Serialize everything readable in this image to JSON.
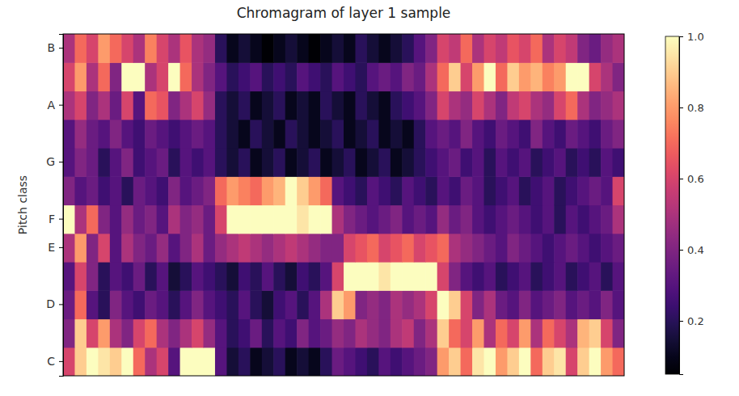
{
  "chart_data": {
    "type": "heatmap",
    "title": "Chromagram of layer 1 sample",
    "y_label": "Pitch class",
    "y_categories": [
      "C",
      null,
      "D",
      null,
      "E",
      "F",
      null,
      "G",
      null,
      "A",
      null,
      "B"
    ],
    "color": "magma",
    "tick_labels": "y",
    "colorbar": {
      "range": [
        0.05,
        1
      ],
      "ticks": [
        0.2,
        0.4,
        0.6,
        0.8,
        {
          "value": 1,
          "label": "1.0"
        }
      ]
    },
    "cells": [
      [
        0.6,
        0.9,
        1,
        0.95,
        0.9,
        1,
        0.7,
        0.5,
        0.6,
        0.3,
        1,
        1,
        1,
        0.3,
        0.15,
        0.2,
        0.1,
        0.15,
        0.2,
        0.1,
        0.15,
        0.1,
        0.2,
        0.35,
        0.3,
        0.25,
        0.2,
        0.3,
        0.25,
        0.3,
        0.35,
        0.4,
        0.8,
        0.9,
        0.7,
        0.95,
        1,
        0.8,
        0.9,
        1,
        0.7,
        0.9,
        0.95,
        0.6,
        0.9,
        1,
        0.8,
        0.7
      ],
      [
        0.4,
        0.9,
        0.6,
        0.8,
        0.5,
        0.4,
        0.6,
        0.7,
        0.5,
        0.4,
        0.5,
        0.6,
        0.45,
        0.3,
        0.2,
        0.25,
        0.35,
        0.2,
        0.3,
        0.25,
        0.4,
        0.3,
        0.35,
        0.45,
        0.4,
        0.5,
        0.45,
        0.4,
        0.5,
        0.55,
        0.4,
        0.5,
        0.9,
        0.7,
        0.6,
        0.8,
        0.5,
        0.7,
        0.6,
        0.8,
        0.5,
        0.7,
        0.6,
        0.5,
        0.85,
        0.9,
        0.6,
        0.4
      ],
      [
        0.35,
        0.7,
        0.3,
        0.2,
        0.4,
        0.3,
        0.25,
        0.35,
        0.3,
        0.2,
        0.3,
        0.4,
        0.3,
        0.25,
        0.2,
        0.3,
        0.2,
        0.15,
        0.25,
        0.3,
        0.2,
        0.3,
        0.5,
        0.9,
        0.8,
        0.4,
        0.45,
        0.4,
        0.5,
        0.45,
        0.5,
        0.6,
        1,
        0.9,
        0.6,
        0.4,
        0.5,
        0.35,
        0.3,
        0.4,
        0.3,
        0.35,
        0.4,
        0.3,
        0.35,
        0.3,
        0.4,
        0.3
      ],
      [
        0.3,
        0.6,
        0.4,
        0.2,
        0.3,
        0.25,
        0.35,
        0.2,
        0.3,
        0.15,
        0.2,
        0.3,
        0.25,
        0.2,
        0.15,
        0.25,
        0.2,
        0.3,
        0.2,
        0.15,
        0.25,
        0.2,
        0.3,
        0.6,
        1,
        1,
        1,
        0.95,
        1,
        1,
        1,
        1,
        0.6,
        0.4,
        0.3,
        0.25,
        0.3,
        0.2,
        0.25,
        0.3,
        0.2,
        0.25,
        0.3,
        0.2,
        0.25,
        0.3,
        0.2,
        0.3
      ],
      [
        0.5,
        0.8,
        0.4,
        0.6,
        0.3,
        0.5,
        0.4,
        0.35,
        0.45,
        0.3,
        0.4,
        0.5,
        0.35,
        0.45,
        0.5,
        0.55,
        0.5,
        0.45,
        0.5,
        0.55,
        0.5,
        0.45,
        0.4,
        0.4,
        0.6,
        0.65,
        0.7,
        0.6,
        0.65,
        0.7,
        0.6,
        0.65,
        0.7,
        0.5,
        0.45,
        0.4,
        0.35,
        0.3,
        0.4,
        0.35,
        0.3,
        0.25,
        0.3,
        0.35,
        0.3,
        0.25,
        0.3,
        0.35
      ],
      [
        1,
        0.5,
        0.7,
        0.4,
        0.3,
        0.45,
        0.35,
        0.4,
        0.3,
        0.5,
        0.4,
        0.45,
        0.35,
        0.6,
        1,
        1,
        1,
        1,
        1,
        1,
        0.95,
        1,
        1,
        0.5,
        0.4,
        0.35,
        0.3,
        0.35,
        0.4,
        0.3,
        0.35,
        0.3,
        0.45,
        0.35,
        0.4,
        0.3,
        0.25,
        0.3,
        0.35,
        0.3,
        0.25,
        0.3,
        0.2,
        0.3,
        0.25,
        0.3,
        0.35,
        0.5
      ],
      [
        0.4,
        0.3,
        0.35,
        0.25,
        0.3,
        0.2,
        0.35,
        0.3,
        0.25,
        0.4,
        0.3,
        0.35,
        0.4,
        0.7,
        0.8,
        0.75,
        0.7,
        0.8,
        0.85,
        1,
        0.9,
        0.8,
        0.7,
        0.3,
        0.25,
        0.2,
        0.3,
        0.25,
        0.2,
        0.3,
        0.25,
        0.2,
        0.3,
        0.25,
        0.35,
        0.3,
        0.2,
        0.25,
        0.3,
        0.2,
        0.25,
        0.3,
        0.2,
        0.25,
        0.3,
        0.35,
        0.3,
        0.6
      ],
      [
        0.3,
        0.4,
        0.35,
        0.2,
        0.3,
        0.4,
        0.25,
        0.3,
        0.35,
        0.2,
        0.3,
        0.25,
        0.3,
        0.2,
        0.15,
        0.2,
        0.1,
        0.15,
        0.2,
        0.1,
        0.15,
        0.2,
        0.1,
        0.15,
        0.2,
        0.1,
        0.15,
        0.2,
        0.1,
        0.15,
        0.2,
        0.25,
        0.3,
        0.35,
        0.25,
        0.3,
        0.2,
        0.3,
        0.25,
        0.3,
        0.2,
        0.25,
        0.3,
        0.2,
        0.25,
        0.2,
        0.3,
        0.25
      ],
      [
        0.3,
        0.45,
        0.35,
        0.3,
        0.4,
        0.3,
        0.25,
        0.35,
        0.3,
        0.25,
        0.3,
        0.35,
        0.3,
        0.2,
        0.15,
        0.1,
        0.2,
        0.15,
        0.1,
        0.2,
        0.15,
        0.1,
        0.15,
        0.2,
        0.1,
        0.15,
        0.2,
        0.1,
        0.15,
        0.1,
        0.2,
        0.3,
        0.35,
        0.3,
        0.4,
        0.3,
        0.25,
        0.35,
        0.3,
        0.25,
        0.4,
        0.3,
        0.25,
        0.35,
        0.3,
        0.25,
        0.35,
        0.4
      ],
      [
        0.5,
        0.6,
        0.4,
        0.5,
        0.35,
        0.6,
        0.3,
        0.7,
        0.65,
        0.4,
        0.5,
        0.6,
        0.45,
        0.2,
        0.15,
        0.2,
        0.1,
        0.15,
        0.2,
        0.1,
        0.15,
        0.1,
        0.2,
        0.15,
        0.1,
        0.2,
        0.15,
        0.1,
        0.2,
        0.25,
        0.3,
        0.4,
        0.6,
        0.5,
        0.45,
        0.6,
        0.5,
        0.4,
        0.55,
        0.6,
        0.5,
        0.45,
        0.6,
        0.7,
        0.5,
        0.4,
        0.45,
        0.5
      ],
      [
        0.6,
        0.8,
        0.5,
        0.7,
        0.4,
        1,
        1,
        0.5,
        0.6,
        1,
        0.7,
        0.5,
        0.4,
        0.3,
        0.2,
        0.25,
        0.3,
        0.2,
        0.25,
        0.2,
        0.3,
        0.25,
        0.2,
        0.3,
        0.25,
        0.2,
        0.3,
        0.35,
        0.3,
        0.4,
        0.35,
        0.5,
        0.7,
        0.9,
        0.6,
        0.8,
        1,
        0.7,
        0.9,
        0.8,
        0.85,
        0.75,
        0.8,
        1,
        1,
        0.6,
        0.5,
        0.4
      ],
      [
        0.5,
        0.7,
        0.6,
        0.8,
        0.7,
        0.6,
        0.5,
        0.75,
        0.6,
        0.5,
        0.65,
        0.5,
        0.45,
        0.2,
        0.1,
        0.15,
        0.1,
        0.05,
        0.1,
        0.15,
        0.1,
        0.05,
        0.1,
        0.15,
        0.1,
        0.2,
        0.15,
        0.1,
        0.15,
        0.2,
        0.3,
        0.4,
        0.6,
        0.55,
        0.7,
        0.5,
        0.6,
        0.55,
        0.65,
        0.6,
        0.7,
        0.5,
        0.6,
        0.55,
        0.4,
        0.35,
        0.45,
        0.5
      ]
    ]
  }
}
